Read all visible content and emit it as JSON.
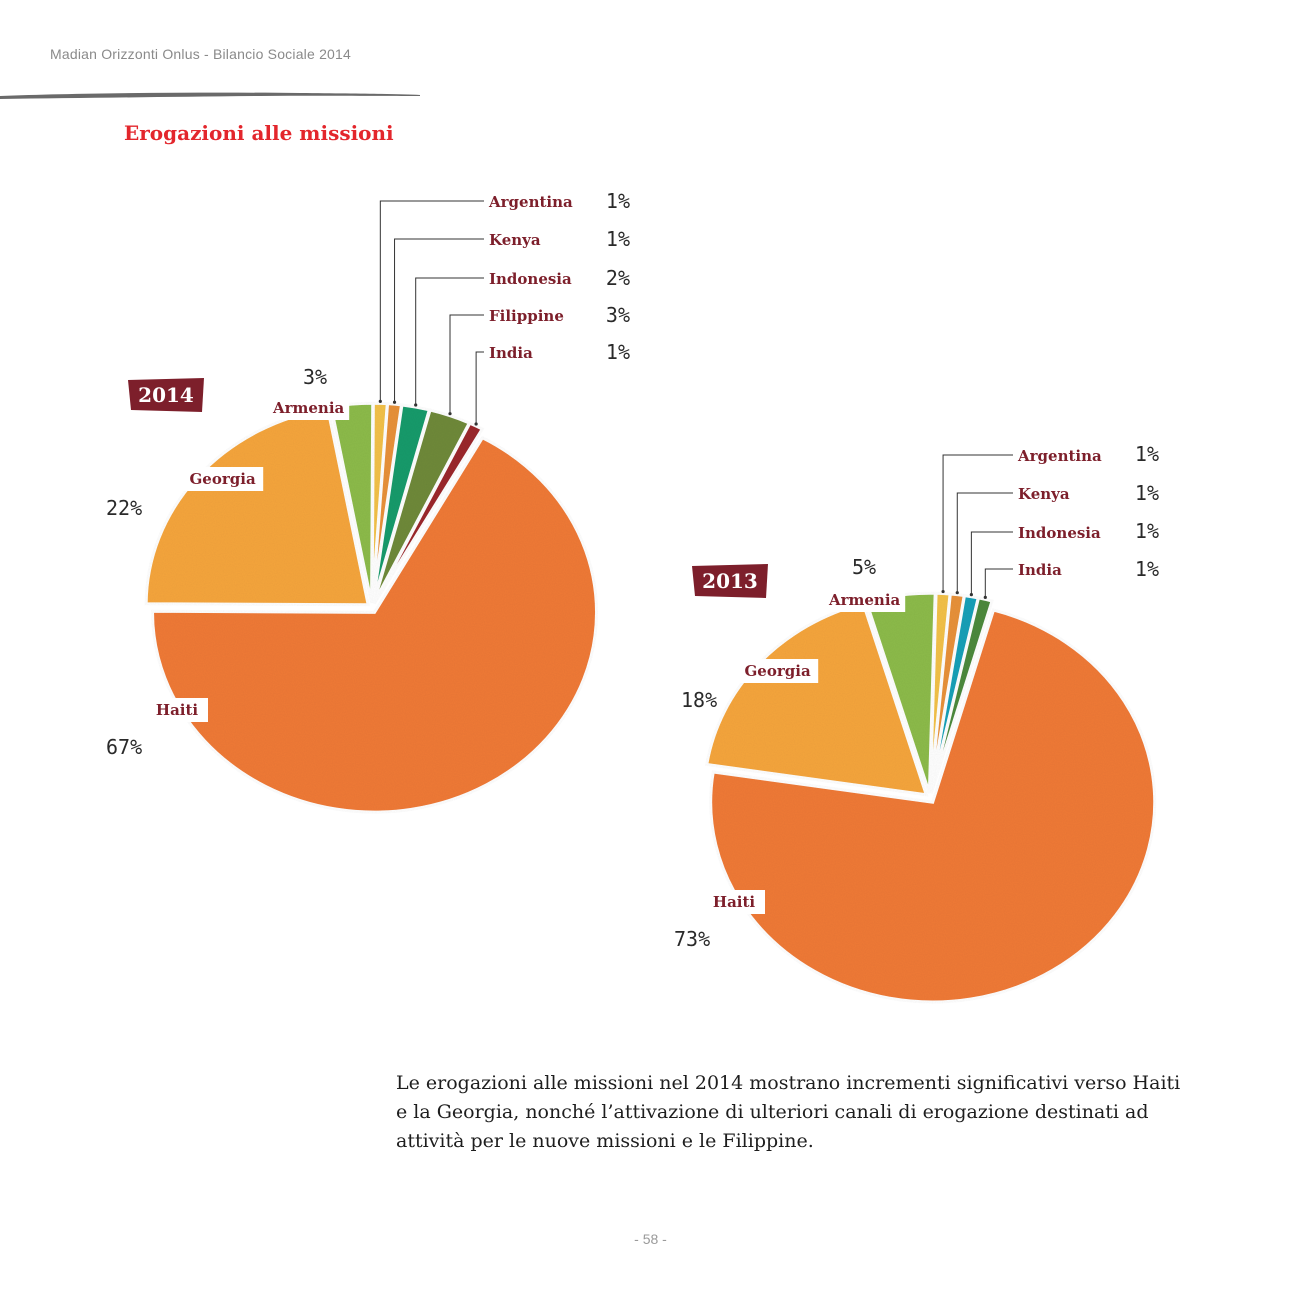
{
  "header": {
    "running_title": "Madian Orizzonti Onlus - Bilancio Sociale 2014",
    "section_title": "Erogazioni alle missioni"
  },
  "body_text": "Le erogazioni alle missioni nel 2014 mostrano incrementi significativi verso Haiti e la Georgia, nonché l’attivazione di ulteriori canali di erogazione destinati ad attività per le nuove missioni e le Filippine.",
  "page_number": "- 58 -",
  "colors": {
    "title_red": "#e3262c",
    "label_maroon": "#7d1f2b",
    "Haiti": "#f07a38",
    "Georgia": "#f6a63c",
    "Armenia": "#8dbb4c",
    "Argentina": "#f3c14a",
    "Kenya": "#e8923a",
    "Indonesia": "#1d9b6c",
    "Indonesia_2013": "#1aa0b8",
    "Filippine": "#6f8a3a",
    "India": "#9b2a2e",
    "India_2013": "#4d8a3c"
  },
  "chart_data": [
    {
      "type": "pie",
      "year_label": "2014",
      "slices": [
        {
          "name": "Haiti",
          "value": 67,
          "label": "67%"
        },
        {
          "name": "Georgia",
          "value": 22,
          "label": "22%"
        },
        {
          "name": "Armenia",
          "value": 3,
          "label": "3%"
        },
        {
          "name": "Argentina",
          "value": 1,
          "label": "1%"
        },
        {
          "name": "Kenya",
          "value": 1,
          "label": "1%"
        },
        {
          "name": "Indonesia",
          "value": 2,
          "label": "2%"
        },
        {
          "name": "Filippine",
          "value": 3,
          "label": "3%"
        },
        {
          "name": "India",
          "value": 1,
          "label": "1%"
        }
      ]
    },
    {
      "type": "pie",
      "year_label": "2013",
      "slices": [
        {
          "name": "Haiti",
          "value": 73,
          "label": "73%"
        },
        {
          "name": "Georgia",
          "value": 18,
          "label": "18%"
        },
        {
          "name": "Armenia",
          "value": 5,
          "label": "5%"
        },
        {
          "name": "Argentina",
          "value": 1,
          "label": "1%"
        },
        {
          "name": "Kenya",
          "value": 1,
          "label": "1%"
        },
        {
          "name": "Indonesia",
          "value": 1,
          "label": "1%"
        },
        {
          "name": "India",
          "value": 1,
          "label": "1%"
        }
      ]
    }
  ]
}
